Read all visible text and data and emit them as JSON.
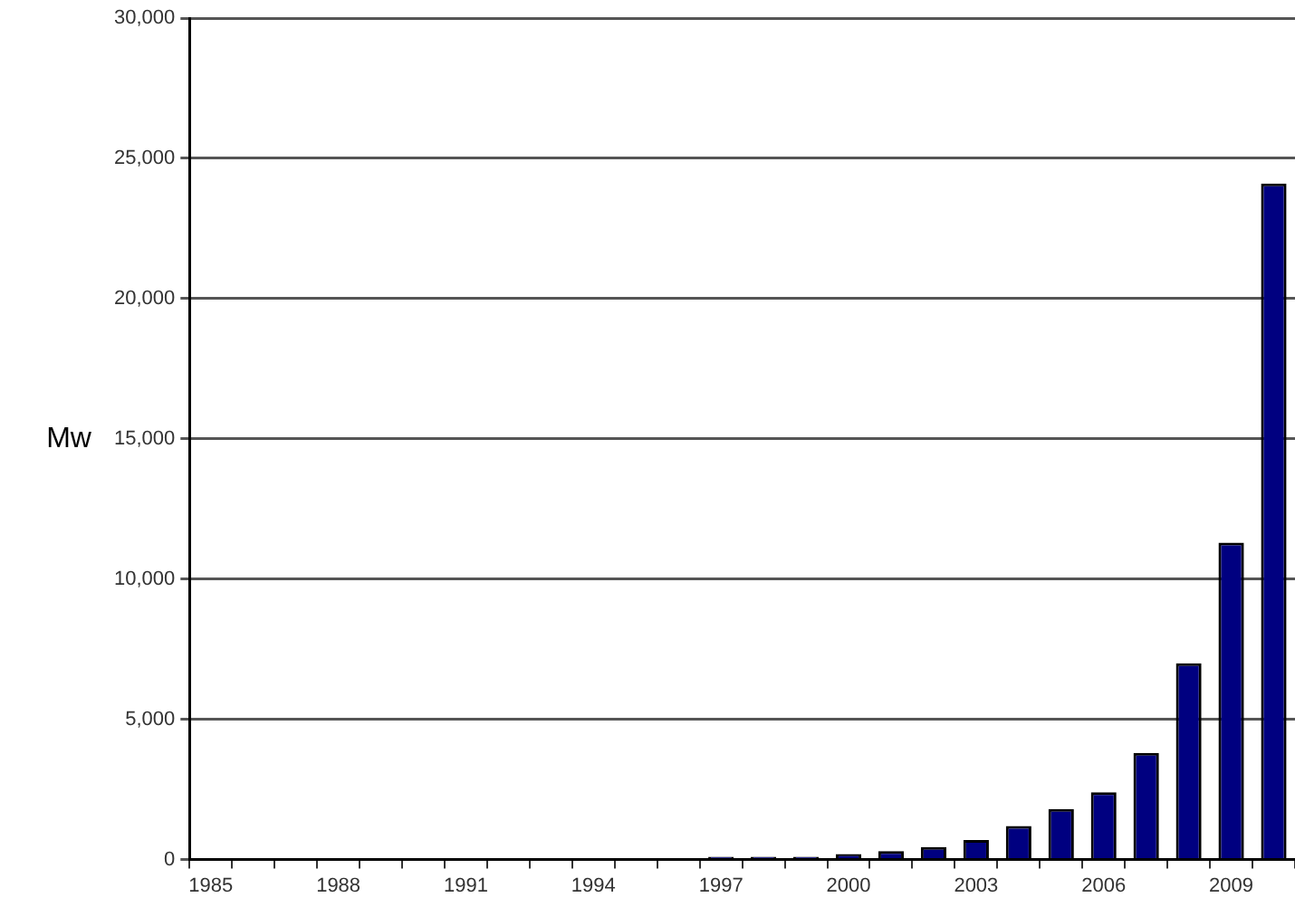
{
  "chart_data": {
    "type": "bar",
    "ylabel": "Mw",
    "categories": [
      "1985",
      null,
      null,
      "1988",
      null,
      null,
      "1991",
      null,
      null,
      "1994",
      null,
      null,
      "1997",
      null,
      null,
      "2000",
      null,
      null,
      "2003",
      null,
      null,
      "2006",
      null,
      null,
      "2009",
      null
    ],
    "values": [
      0,
      0,
      0,
      0,
      0,
      0,
      0,
      0,
      0,
      0,
      0,
      0,
      100,
      100,
      100,
      200,
      300,
      450,
      700,
      1200,
      1800,
      2400,
      3800,
      7000,
      11300,
      24100
    ],
    "color": "#000080",
    "ylim": [
      0,
      30000
    ],
    "yticks": [
      0,
      {
        "value": 5000,
        "label": "5,000"
      },
      {
        "value": 10000,
        "label": "10,000"
      },
      {
        "value": 15000,
        "label": "15,000"
      },
      {
        "value": 20000,
        "label": "20,000"
      },
      {
        "value": 25000,
        "label": "25,000"
      },
      {
        "value": 30000,
        "label": "30,000"
      }
    ],
    "grid": "y"
  }
}
